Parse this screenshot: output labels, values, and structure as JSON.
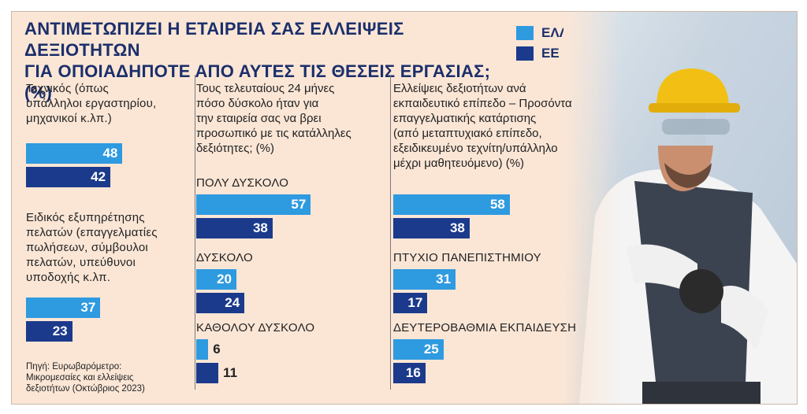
{
  "title_line1": "ΑΝΤΙΜΕΤΩΠΙΖΕΙ Η ΕΤΑΙΡΕΙΑ ΣΑΣ ΕΛΛΕΙΨΕΙΣ ΔΕΞΙΟΤΗΤΩΝ",
  "title_line2": "ΓΙΑ ΟΠΟΙΑΔΗΠΟΤΕ ΑΠΟ ΑΥΤΕΣ ΤΙΣ ΘΕΣΕΙΣ ΕΡΓΑΣΙΑΣ; (%)",
  "colors": {
    "greece": "#2e9ae0",
    "eu": "#1b3a8c",
    "title": "#1b2f6b"
  },
  "legend": [
    {
      "name": "ΕΛΛΑΔΑ",
      "color": "#2e9ae0"
    },
    {
      "name": "ΕΕ",
      "color": "#1b3a8c"
    }
  ],
  "source": {
    "line1": "Πηγή: Ευρωβαρόμετρο:",
    "line2": "Μικρομεσαίες και ελλείψεις",
    "line3": "δεξιοτήτων (Οκτώβριος 2023)"
  },
  "chart_data": [
    {
      "type": "bar",
      "orientation": "horizontal",
      "question": [
        "ΑΝΤΙΜΕΤΩΠΙΖΕΙ Η ΕΤΑΙΡΕΙΑ ΣΑΣ ΕΛΛΕΙΨΕΙΣ ΔΕΞΙΟΤΗΤΩΝ ΓΙΑ ΟΠΟΙΑΔΗΠΟΤΕ ΑΠΟ ΑΥΤΕΣ ΤΙΣ ΘΕΣΕΙΣ ΕΡΓΑΣΙΑΣ; (%)"
      ],
      "categories": [
        [
          "Τεχνικός (όπως",
          "υπάλληλοι εργαστηρίου,",
          "μηχανικοί κ.λπ.)"
        ],
        [
          "Ειδικός εξυπηρέτησης",
          "πελατών (επαγγελματίες",
          "πωλήσεων, σύμβουλοι",
          "πελατών, υπεύθυνοι",
          "υποδοχής κ.λπ."
        ]
      ],
      "series": [
        {
          "name": "ΕΛΛΑΔΑ",
          "values": [
            48,
            37
          ]
        },
        {
          "name": "ΕΕ",
          "values": [
            42,
            23
          ]
        }
      ],
      "xlim": [
        0,
        100
      ]
    },
    {
      "type": "bar",
      "orientation": "horizontal",
      "question": [
        "Τους τελευταίους 24 μήνες",
        "πόσο δύσκολο ήταν για",
        "την εταιρεία σας να βρει",
        "προσωπικό με τις κατάλληλες",
        "δεξιότητες; (%)"
      ],
      "categories": [
        [
          "ΠΟΛΥ ΔΥΣΚΟΛΟ"
        ],
        [
          "ΔΥΣΚΟΛΟ"
        ],
        [
          "ΚΑΘΟΛΟΥ ΔΥΣΚΟΛΟ"
        ]
      ],
      "series": [
        {
          "name": "ΕΛΛΑΔΑ",
          "values": [
            57,
            20,
            6
          ]
        },
        {
          "name": "ΕΕ",
          "values": [
            38,
            24,
            11
          ]
        }
      ],
      "xlim": [
        0,
        100
      ]
    },
    {
      "type": "bar",
      "orientation": "horizontal",
      "question": [
        "Ελλείψεις δεξιοτήτων ανά",
        "εκπαιδευτικό επίπεδο – Προσόντα",
        "επαγγελματικής κατάρτισης",
        "(από μεταπτυχιακό επίπεδο,",
        "εξειδικευμένο τεχνίτη/υπάλληλο",
        "μέχρι μαθητευόμενο) (%)"
      ],
      "categories": [
        [
          ""
        ],
        [
          "ΠΤΥΧΙΟ ΠΑΝΕΠΙΣΤΗΜΙΟΥ"
        ],
        [
          "ΔΕΥΤΕΡΟΒΑΘΜΙΑ ΕΚΠΑΙΔΕΥΣΗ"
        ]
      ],
      "series": [
        {
          "name": "ΕΛΛΑΔΑ",
          "values": [
            58,
            31,
            25
          ]
        },
        {
          "name": "ΕΕ",
          "values": [
            38,
            17,
            16
          ]
        }
      ],
      "xlim": [
        0,
        100
      ]
    }
  ]
}
